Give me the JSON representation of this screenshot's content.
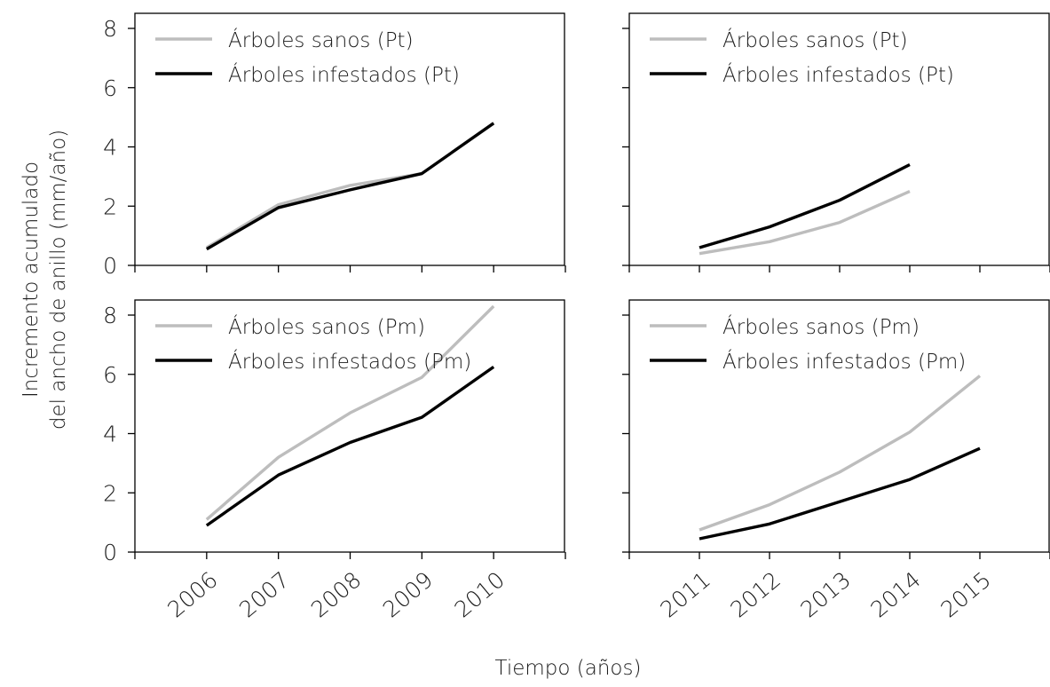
{
  "figure": {
    "ylabel_line1": "Incremento acumulado",
    "ylabel_line2": "del ancho de anillo (mm/año)",
    "xlabel": "Tiempo (años)"
  },
  "colors": {
    "healthy": "#bdbdbd",
    "infested": "#000000"
  },
  "chart_data": [
    {
      "type": "line",
      "panel": "top-left",
      "x": [
        2006,
        2007,
        2008,
        2009,
        2010
      ],
      "xlim": [
        2005,
        2011
      ],
      "ylim": [
        0,
        8
      ],
      "yticks": [
        0,
        2,
        4,
        6,
        8
      ],
      "series": [
        {
          "name": "Árboles sanos (Pt)",
          "color": "#bdbdbd",
          "values": [
            0.6,
            2.05,
            2.7,
            3.1,
            4.8
          ]
        },
        {
          "name": "Árboles infestados (Pt)",
          "color": "#000000",
          "values": [
            0.55,
            1.95,
            2.55,
            3.1,
            4.8
          ]
        }
      ],
      "legend": "top-left"
    },
    {
      "type": "line",
      "panel": "top-right",
      "x": [
        2011,
        2012,
        2013,
        2014,
        2015
      ],
      "xlim": [
        2010,
        2016
      ],
      "ylim": [
        0,
        8
      ],
      "yticks": [
        0,
        2,
        4,
        6,
        8
      ],
      "series": [
        {
          "name": "Árboles sanos (Pt)",
          "color": "#bdbdbd",
          "values": [
            0.4,
            0.8,
            1.45,
            2.5,
            null
          ]
        },
        {
          "name": "Árboles infestados (Pt)",
          "color": "#000000",
          "values": [
            0.6,
            1.3,
            2.2,
            3.4,
            null
          ]
        }
      ],
      "legend": "top-left"
    },
    {
      "type": "line",
      "panel": "bottom-left",
      "x": [
        2006,
        2007,
        2008,
        2009,
        2010
      ],
      "xlim": [
        2005,
        2011
      ],
      "ylim": [
        0,
        8
      ],
      "yticks": [
        0,
        2,
        4,
        6,
        8
      ],
      "xticklabels": [
        "2006",
        "2007",
        "2008",
        "2009",
        "2010"
      ],
      "series": [
        {
          "name": "Árboles sanos (Pm)",
          "color": "#bdbdbd",
          "values": [
            1.1,
            3.2,
            4.7,
            5.9,
            8.3
          ]
        },
        {
          "name": "Árboles infestados (Pm)",
          "color": "#000000",
          "values": [
            0.9,
            2.6,
            3.7,
            4.55,
            6.25
          ]
        }
      ],
      "legend": "top-left"
    },
    {
      "type": "line",
      "panel": "bottom-right",
      "x": [
        2011,
        2012,
        2013,
        2014,
        2015
      ],
      "xlim": [
        2010,
        2016
      ],
      "ylim": [
        0,
        8
      ],
      "yticks": [
        0,
        2,
        4,
        6,
        8
      ],
      "xticklabels": [
        "2011",
        "2012",
        "2013",
        "2014",
        "2015"
      ],
      "series": [
        {
          "name": "Árboles sanos (Pm)",
          "color": "#bdbdbd",
          "values": [
            0.75,
            1.6,
            2.7,
            4.05,
            5.95
          ]
        },
        {
          "name": "Árboles infestados (Pm)",
          "color": "#000000",
          "values": [
            0.45,
            0.95,
            1.7,
            2.45,
            3.5
          ]
        }
      ],
      "legend": "top-left"
    }
  ]
}
